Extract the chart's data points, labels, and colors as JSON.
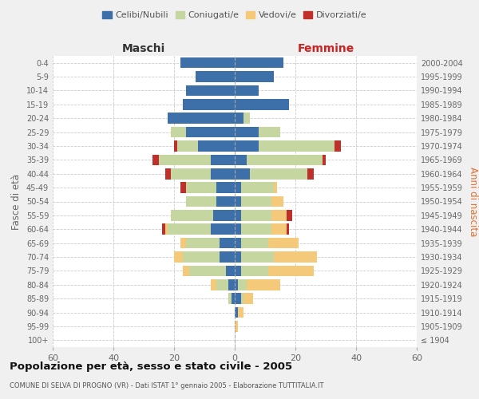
{
  "age_groups": [
    "100+",
    "95-99",
    "90-94",
    "85-89",
    "80-84",
    "75-79",
    "70-74",
    "65-69",
    "60-64",
    "55-59",
    "50-54",
    "45-49",
    "40-44",
    "35-39",
    "30-34",
    "25-29",
    "20-24",
    "15-19",
    "10-14",
    "5-9",
    "0-4"
  ],
  "year_labels": [
    "≤ 1904",
    "1905-1909",
    "1910-1914",
    "1915-1919",
    "1920-1924",
    "1925-1929",
    "1930-1934",
    "1935-1939",
    "1940-1944",
    "1945-1949",
    "1950-1954",
    "1955-1959",
    "1960-1964",
    "1965-1969",
    "1970-1974",
    "1975-1979",
    "1980-1984",
    "1985-1989",
    "1990-1994",
    "1995-1999",
    "2000-2004"
  ],
  "maschi": {
    "celibi": [
      0,
      0,
      0,
      1,
      2,
      3,
      5,
      5,
      8,
      7,
      6,
      6,
      8,
      8,
      12,
      16,
      22,
      17,
      16,
      13,
      18
    ],
    "coniugati": [
      0,
      0,
      0,
      1,
      4,
      12,
      12,
      11,
      14,
      14,
      10,
      10,
      13,
      17,
      7,
      5,
      0,
      0,
      0,
      0,
      0
    ],
    "vedovi": [
      0,
      0,
      0,
      0,
      2,
      2,
      3,
      2,
      1,
      0,
      0,
      0,
      0,
      0,
      0,
      0,
      0,
      0,
      0,
      0,
      0
    ],
    "divorziati": [
      0,
      0,
      0,
      0,
      0,
      0,
      0,
      0,
      1,
      0,
      0,
      2,
      2,
      2,
      1,
      0,
      0,
      0,
      0,
      0,
      0
    ]
  },
  "femmine": {
    "nubili": [
      0,
      0,
      1,
      2,
      1,
      2,
      2,
      2,
      2,
      2,
      2,
      2,
      5,
      4,
      8,
      8,
      3,
      18,
      8,
      13,
      16
    ],
    "coniugate": [
      0,
      0,
      0,
      1,
      3,
      9,
      11,
      9,
      10,
      10,
      10,
      11,
      19,
      25,
      25,
      7,
      2,
      0,
      0,
      0,
      0
    ],
    "vedove": [
      0,
      1,
      2,
      3,
      11,
      15,
      14,
      10,
      5,
      5,
      4,
      1,
      0,
      0,
      0,
      0,
      0,
      0,
      0,
      0,
      0
    ],
    "divorziate": [
      0,
      0,
      0,
      0,
      0,
      0,
      0,
      0,
      1,
      2,
      0,
      0,
      2,
      1,
      2,
      0,
      0,
      0,
      0,
      0,
      0
    ]
  },
  "colors": {
    "celibi_nubili": "#3d6fa8",
    "coniugati": "#c5d6a0",
    "vedovi": "#f5c97a",
    "divorziati": "#c0302a"
  },
  "xlim": 60,
  "title": "Popolazione per età, sesso e stato civile - 2005",
  "subtitle": "COMUNE DI SELVA DI PROGNO (VR) - Dati ISTAT 1° gennaio 2005 - Elaborazione TUTTITALIA.IT",
  "ylabel_left": "Fasce di età",
  "ylabel_right": "Anni di nascita",
  "xlabel_left": "Maschi",
  "xlabel_right": "Femmine",
  "bg_color": "#f0f0f0",
  "plot_bg": "#ffffff"
}
